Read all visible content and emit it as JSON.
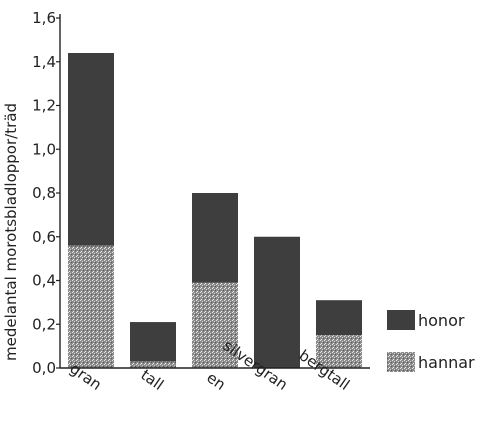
{
  "chart_data": {
    "type": "bar",
    "stacked": true,
    "ylabel": "medelantal morotsbladloppor/träd",
    "ylim": [
      0,
      1.6
    ],
    "yticks": [
      "0,0",
      "0,2",
      "0,4",
      "0,6",
      "0,8",
      "1,0",
      "1,2",
      "1,4",
      "1,6"
    ],
    "categories": [
      "gran",
      "tall",
      "en",
      "silvergran",
      "bergtall"
    ],
    "series": [
      {
        "name": "hannar",
        "values": [
          0.56,
          0.03,
          0.39,
          0.0,
          0.15
        ],
        "pattern": "stipple"
      },
      {
        "name": "honor",
        "values": [
          0.88,
          0.18,
          0.41,
          0.6,
          0.16
        ],
        "pattern": "solid"
      }
    ],
    "legend_order": [
      "honor",
      "hannar"
    ],
    "legend_position": "right",
    "grid": false,
    "colors": {
      "honor": "#3e3e3e",
      "hannar_base": "#8a8a8a",
      "axis": "#222222"
    }
  }
}
